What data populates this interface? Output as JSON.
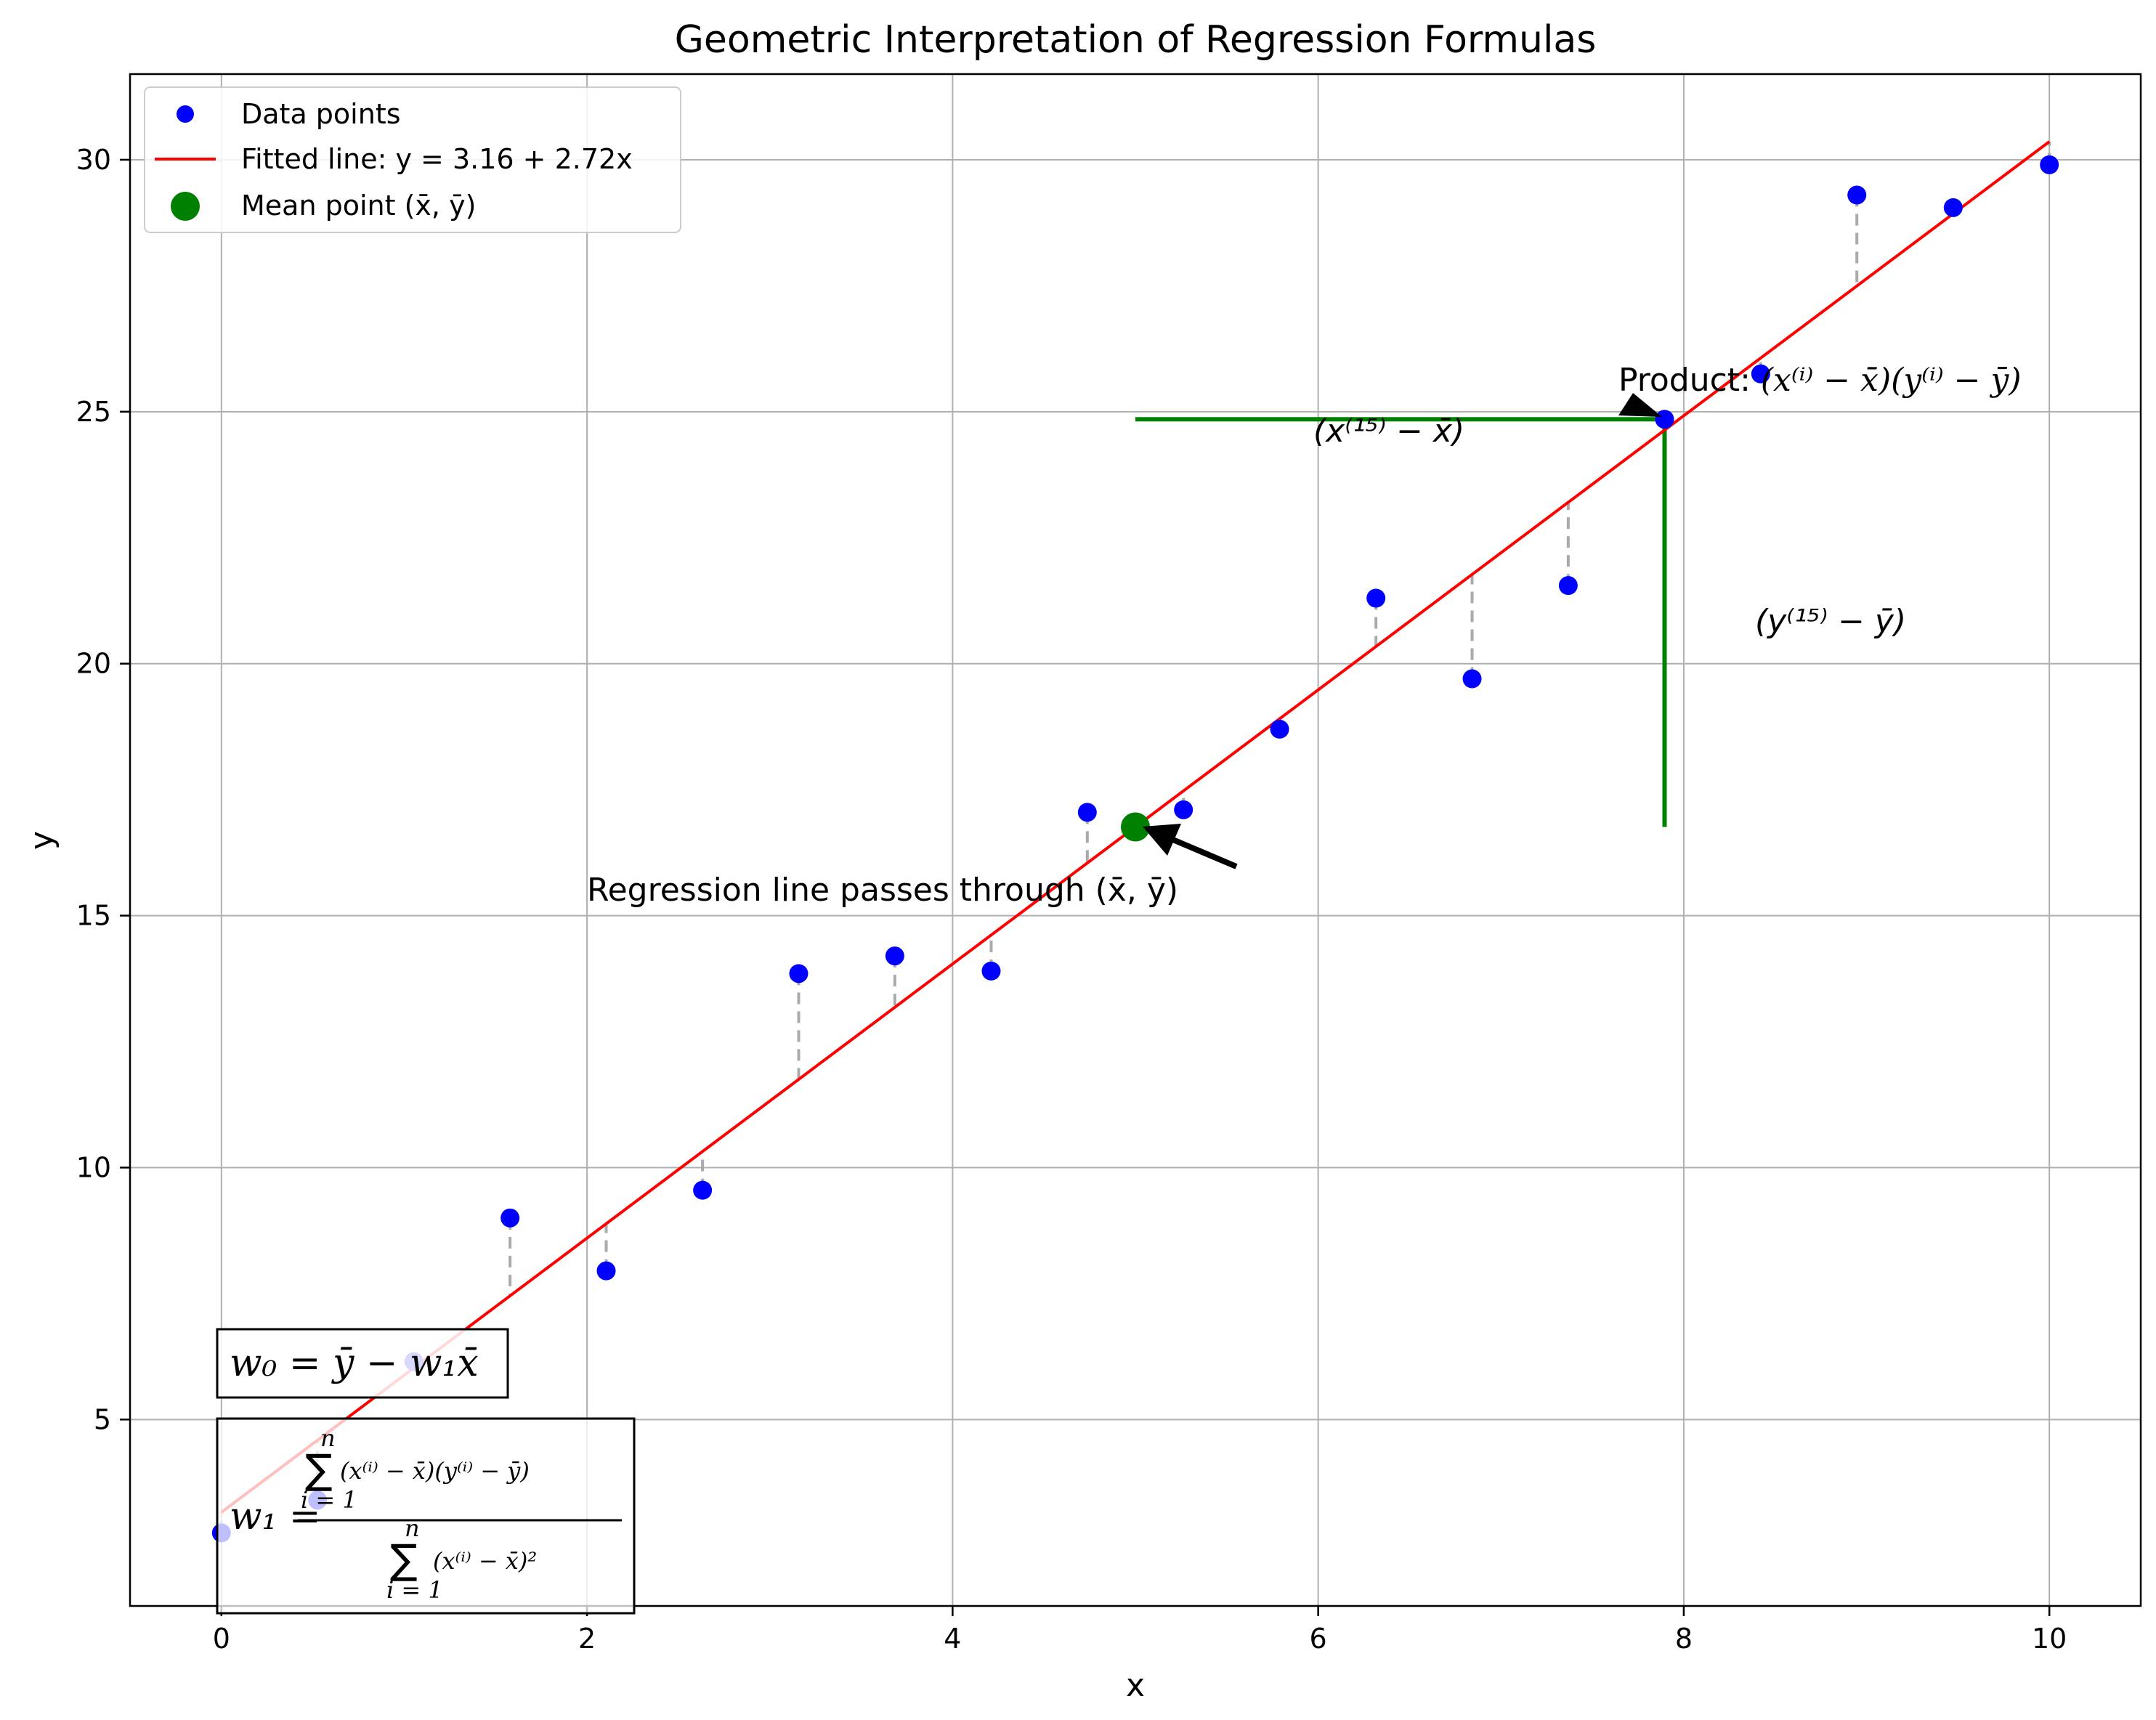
{
  "chart_data": {
    "type": "scatter",
    "title": "Geometric Interpretation of Regression Formulas",
    "xlabel": "x",
    "ylabel": "y",
    "xlim": [
      -0.5,
      10.5
    ],
    "ylim": [
      1.3,
      31.7
    ],
    "xticks": [
      0,
      2,
      4,
      6,
      8,
      10
    ],
    "yticks": [
      5,
      10,
      15,
      20,
      25,
      30
    ],
    "grid": true,
    "legend_position": "top-left",
    "colors": {
      "points": "#0000ff",
      "line": "#ff0000",
      "mean": "#008000",
      "residual": "#aaaaaa",
      "deviation": "#008000"
    },
    "series": [
      {
        "name": "Data points",
        "kind": "scatter",
        "x": [
          0.0,
          0.526,
          1.053,
          1.579,
          2.105,
          2.632,
          3.158,
          3.684,
          4.211,
          4.737,
          5.263,
          5.789,
          6.316,
          6.842,
          7.368,
          7.895,
          8.421,
          8.947,
          9.474,
          10.0
        ],
        "y": [
          2.75,
          3.4,
          6.15,
          9.0,
          7.95,
          9.55,
          13.85,
          14.2,
          13.9,
          17.05,
          17.1,
          18.7,
          21.3,
          19.7,
          21.55,
          24.85,
          25.75,
          29.3,
          29.05,
          29.9
        ]
      },
      {
        "name": "Fitted line: y = 3.16 + 2.72x",
        "kind": "line",
        "intercept": 3.16,
        "slope": 2.72,
        "x_range": [
          0,
          10
        ]
      },
      {
        "name": "Mean point (x̄, ȳ)",
        "kind": "point",
        "x": 5.0,
        "y": 16.76
      }
    ],
    "deviation_lines": {
      "horizontal": {
        "x": [
          5.0,
          7.895
        ],
        "y": 24.85
      },
      "vertical": {
        "x": 7.895,
        "y": [
          16.76,
          24.85
        ]
      }
    },
    "annotations": {
      "mean_arrow": "Regression line passes through (x̄, ȳ)",
      "product_prefix": "Product: ",
      "product_math": "(x⁽ⁱ⁾ − x̄)(y⁽ⁱ⁾ − ȳ)",
      "x_dev": "(x⁽¹⁵⁾ − x̄)",
      "y_dev": "(y⁽¹⁵⁾ − ȳ)",
      "w0_formula": "w₀ = ȳ − w₁x̄",
      "w1_lhs": "w₁ =",
      "w1_num": "(x⁽ⁱ⁾ − x̄)(y⁽ⁱ⁾ − ȳ)",
      "w1_den": "(x⁽ⁱ⁾ − x̄)²",
      "sum_symbol": "∑",
      "sum_upper": "n",
      "sum_lower": "i = 1"
    }
  }
}
